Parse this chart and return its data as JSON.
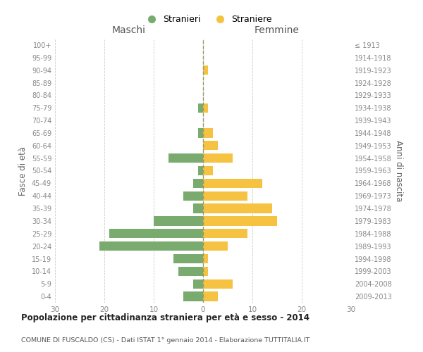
{
  "age_groups": [
    "0-4",
    "5-9",
    "10-14",
    "15-19",
    "20-24",
    "25-29",
    "30-34",
    "35-39",
    "40-44",
    "45-49",
    "50-54",
    "55-59",
    "60-64",
    "65-69",
    "70-74",
    "75-79",
    "80-84",
    "85-89",
    "90-94",
    "95-99",
    "100+"
  ],
  "birth_years": [
    "2009-2013",
    "2004-2008",
    "1999-2003",
    "1994-1998",
    "1989-1993",
    "1984-1988",
    "1979-1983",
    "1974-1978",
    "1969-1973",
    "1964-1968",
    "1959-1963",
    "1954-1958",
    "1949-1953",
    "1944-1948",
    "1939-1943",
    "1934-1938",
    "1929-1933",
    "1924-1928",
    "1919-1923",
    "1914-1918",
    "≤ 1913"
  ],
  "males": [
    4,
    2,
    5,
    6,
    21,
    19,
    10,
    2,
    4,
    2,
    1,
    7,
    0,
    1,
    0,
    1,
    0,
    0,
    0,
    0,
    0
  ],
  "females": [
    3,
    6,
    1,
    1,
    5,
    9,
    15,
    14,
    9,
    12,
    2,
    6,
    3,
    2,
    0,
    1,
    0,
    0,
    1,
    0,
    0
  ],
  "male_color": "#7aab6e",
  "female_color": "#f5c242",
  "xlim": 30,
  "title": "Popolazione per cittadinanza straniera per età e sesso - 2014",
  "subtitle": "COMUNE DI FUSCALDO (CS) - Dati ISTAT 1° gennaio 2014 - Elaborazione TUTTITALIA.IT",
  "xlabel_left": "Maschi",
  "xlabel_right": "Femmine",
  "ylabel_left": "Fasce di età",
  "ylabel_right": "Anni di nascita",
  "legend_male": "Stranieri",
  "legend_female": "Straniere",
  "background_color": "#ffffff",
  "grid_color": "#cccccc",
  "tick_color": "#888888",
  "bar_height": 0.75
}
